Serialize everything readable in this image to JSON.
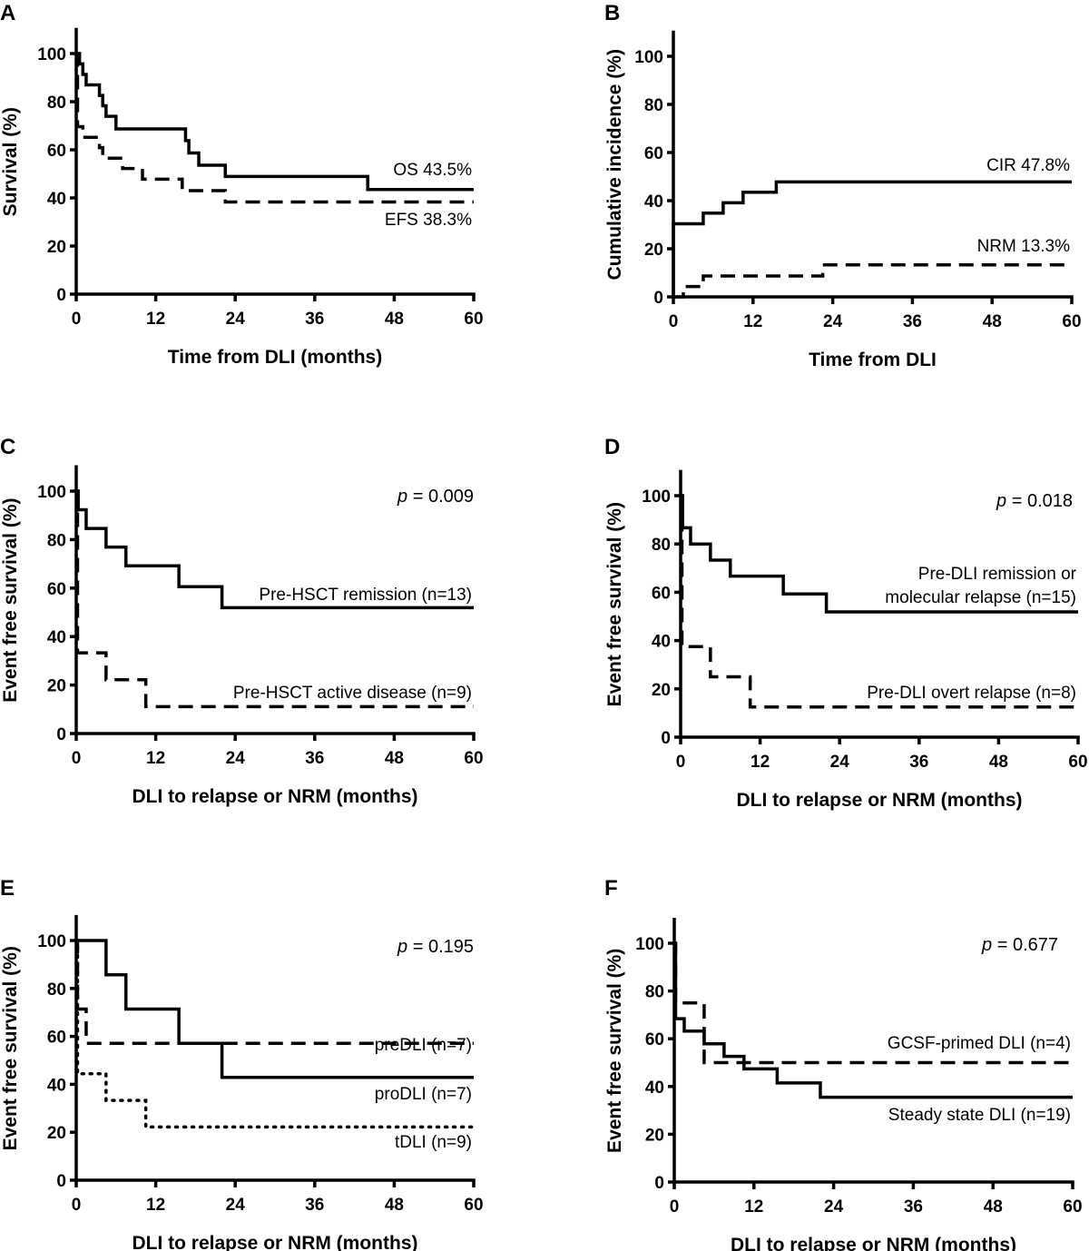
{
  "chart_data": [
    {
      "panel": "A",
      "type": "line",
      "step": true,
      "title": "",
      "xlabel": "Time from DLI (months)",
      "ylabel": "Survival (%)",
      "xlim": [
        0,
        60
      ],
      "ylim": [
        0,
        110
      ],
      "xticks": [
        0,
        12,
        24,
        36,
        48,
        60
      ],
      "yticks": [
        0,
        20,
        40,
        60,
        80,
        100
      ],
      "grid": false,
      "series": [
        {
          "name": "OS",
          "style": "solid",
          "label": "OS 43.5%",
          "x": [
            0,
            0.5,
            1.0,
            1.5,
            3.5,
            4.0,
            4.5,
            6.0,
            16.5,
            17.0,
            18.5,
            22.5,
            44.0,
            60
          ],
          "y": [
            100,
            95.7,
            91.3,
            87.0,
            82.6,
            78.3,
            73.9,
            68.7,
            63.8,
            58.7,
            53.6,
            48.9,
            43.5,
            43.5
          ]
        },
        {
          "name": "EFS",
          "style": "dashed",
          "label": "EFS 38.3%",
          "x": [
            0,
            0.2,
            0.5,
            1.0,
            3.5,
            4.0,
            7.0,
            10.0,
            16.0,
            22.5,
            60
          ],
          "y": [
            100,
            69.6,
            69.6,
            65.2,
            60.9,
            56.5,
            52.2,
            47.8,
            43.0,
            38.3,
            38.3
          ]
        }
      ],
      "annotations": []
    },
    {
      "panel": "B",
      "type": "line",
      "step": true,
      "title": "",
      "xlabel": "Time from DLI",
      "ylabel": "Cumulative incidence (%)",
      "xlim": [
        0,
        60
      ],
      "ylim": [
        0,
        110
      ],
      "xticks": [
        0,
        12,
        24,
        36,
        48,
        60
      ],
      "yticks": [
        0,
        20,
        40,
        60,
        80,
        100
      ],
      "grid": false,
      "series": [
        {
          "name": "CIR",
          "style": "solid",
          "label": "CIR 47.8%",
          "x": [
            0,
            0,
            4.5,
            7.5,
            10.5,
            15.5,
            60
          ],
          "y": [
            0,
            30.4,
            34.8,
            39.1,
            43.5,
            47.8,
            47.8
          ]
        },
        {
          "name": "NRM",
          "style": "dashed",
          "label": "NRM 13.3%",
          "x": [
            0,
            1.5,
            4.5,
            22.5,
            60
          ],
          "y": [
            0,
            4.3,
            8.7,
            13.3,
            13.3
          ]
        }
      ],
      "annotations": []
    },
    {
      "panel": "C",
      "type": "line",
      "step": true,
      "title": "",
      "xlabel": "DLI to relapse or NRM (months)",
      "ylabel": "Event free survival (%)",
      "xlim": [
        0,
        60
      ],
      "ylim": [
        0,
        110
      ],
      "xticks": [
        0,
        12,
        24,
        36,
        48,
        60
      ],
      "yticks": [
        0,
        20,
        40,
        60,
        80,
        100
      ],
      "grid": false,
      "series": [
        {
          "name": "Pre-HSCT remission",
          "style": "solid",
          "label": "Pre-HSCT remission (n=13)",
          "x": [
            0,
            0.3,
            1.5,
            4.5,
            7.5,
            15.5,
            22.0,
            60
          ],
          "y": [
            100,
            92.3,
            84.6,
            76.9,
            69.2,
            60.6,
            51.9,
            51.9
          ]
        },
        {
          "name": "Pre-HSCT active disease",
          "style": "dashed",
          "label": "Pre-HSCT active disease (n=9)",
          "x": [
            0,
            0.2,
            4.5,
            10.5,
            60
          ],
          "y": [
            100,
            33.3,
            22.2,
            11.1,
            11.1
          ]
        }
      ],
      "annotations": [
        "p = 0.009"
      ]
    },
    {
      "panel": "D",
      "type": "line",
      "step": true,
      "title": "",
      "xlabel": "DLI to relapse or NRM (months)",
      "ylabel": "Event free survival (%)",
      "xlim": [
        0,
        60
      ],
      "ylim": [
        0,
        110
      ],
      "xticks": [
        0,
        12,
        24,
        36,
        48,
        60
      ],
      "yticks": [
        0,
        20,
        40,
        60,
        80,
        100
      ],
      "grid": false,
      "series": [
        {
          "name": "Pre-DLI remission or molecular relapse",
          "style": "solid",
          "label": [
            "Pre-DLI remission or",
            "molecular relapse (n=15)"
          ],
          "x": [
            0,
            0.3,
            1.5,
            4.5,
            7.5,
            15.5,
            22.0,
            60
          ],
          "y": [
            100,
            86.7,
            80.0,
            73.3,
            66.7,
            59.3,
            51.9,
            51.9
          ]
        },
        {
          "name": "Pre-DLI overt relapse",
          "style": "dashed",
          "label": "Pre-DLI overt relapse (n=8)",
          "x": [
            0,
            0.2,
            4.5,
            10.5,
            60
          ],
          "y": [
            100,
            37.5,
            25.0,
            12.5,
            12.5
          ]
        }
      ],
      "annotations": [
        "p = 0.018"
      ]
    },
    {
      "panel": "E",
      "type": "line",
      "step": true,
      "title": "",
      "xlabel": "DLI to relapse or NRM (months)",
      "ylabel": "Event free survival (%)",
      "xlim": [
        0,
        60
      ],
      "ylim": [
        0,
        110
      ],
      "xticks": [
        0,
        12,
        24,
        36,
        48,
        60
      ],
      "yticks": [
        0,
        20,
        40,
        60,
        80,
        100
      ],
      "grid": false,
      "series": [
        {
          "name": "proDLI",
          "style": "solid",
          "label": "proDLI (n=7)",
          "x": [
            0,
            4.5,
            7.5,
            15.5,
            22.0,
            60
          ],
          "y": [
            100,
            85.7,
            71.4,
            57.1,
            42.9,
            42.9
          ]
        },
        {
          "name": "preDLI",
          "style": "dashed",
          "label": "preDLI (n=7)",
          "x": [
            0,
            0.2,
            1.5,
            60
          ],
          "y": [
            100,
            71.4,
            57.1,
            57.1
          ]
        },
        {
          "name": "tDLI",
          "style": "dotted",
          "label": "tDLI (n=9)",
          "x": [
            0,
            0.2,
            4.5,
            10.5,
            60
          ],
          "y": [
            100,
            44.4,
            33.3,
            22.2,
            22.2
          ]
        }
      ],
      "annotations": [
        "p = 0.195"
      ]
    },
    {
      "panel": "F",
      "type": "line",
      "step": true,
      "title": "",
      "xlabel": "DLI to relapse or NRM (months)",
      "ylabel": "Event free survival (%)",
      "xlim": [
        0,
        60
      ],
      "ylim": [
        0,
        110
      ],
      "xticks": [
        0,
        12,
        24,
        36,
        48,
        60
      ],
      "yticks": [
        0,
        20,
        40,
        60,
        80,
        100
      ],
      "grid": false,
      "series": [
        {
          "name": "GCSF-primed DLI",
          "style": "dashed",
          "label": "GCSF-primed DLI (n=4)",
          "x": [
            0,
            0.2,
            4.5,
            60
          ],
          "y": [
            100,
            75.0,
            50.0,
            50.0
          ]
        },
        {
          "name": "Steady state DLI",
          "style": "solid",
          "label": "Steady state DLI (n=19)",
          "x": [
            0,
            0.2,
            1.5,
            4.5,
            7.5,
            10.5,
            15.5,
            22.0,
            60
          ],
          "y": [
            100,
            68.4,
            63.2,
            57.9,
            52.6,
            47.4,
            41.5,
            35.5,
            35.5
          ]
        }
      ],
      "annotations": [
        "p = 0.677"
      ]
    }
  ]
}
